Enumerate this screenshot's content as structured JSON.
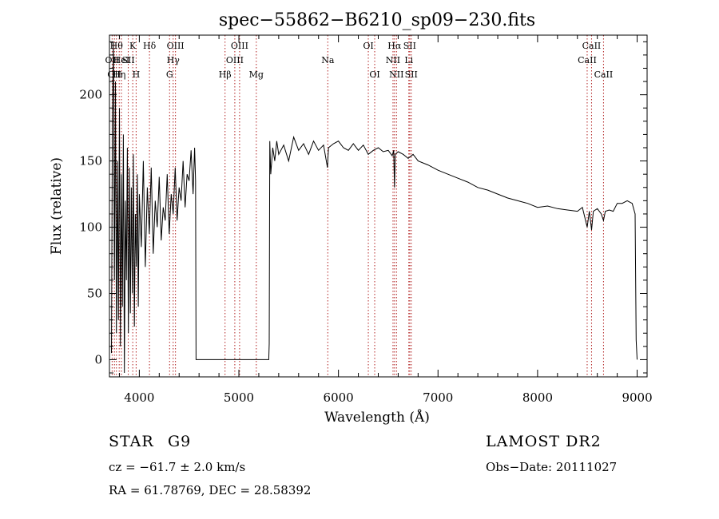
{
  "chart_data": {
    "type": "line",
    "title": "spec−55862−B6210_sp09−230.fits",
    "xlabel": "Wavelength (Å)",
    "ylabel": "Flux (relative)",
    "xlim": [
      3700,
      9100
    ],
    "ylim": [
      -13,
      245
    ],
    "xticks": [
      4000,
      5000,
      6000,
      7000,
      8000,
      9000
    ],
    "yticks": [
      0,
      50,
      100,
      150,
      200
    ],
    "grid": false,
    "line_color": "#000000",
    "marker_color": "#b22222",
    "series": [
      {
        "values_x": [
          3720,
          3730,
          3740,
          3750,
          3760,
          3770,
          3780,
          3790,
          3800,
          3810,
          3820,
          3830,
          3840,
          3850,
          3860,
          3870,
          3880,
          3890,
          3900,
          3910,
          3920,
          3930,
          3940,
          3950,
          3960,
          3970,
          3980,
          3990,
          4000,
          4020,
          4040,
          4060,
          4080,
          4100,
          4120,
          4140,
          4160,
          4180,
          4200,
          4220,
          4240,
          4260,
          4280,
          4300,
          4320,
          4340,
          4360,
          4380,
          4400,
          4420,
          4440,
          4460,
          4480,
          4500,
          4520,
          4540,
          4555,
          4565,
          4570,
          5300,
          5305,
          5310,
          5320,
          5340,
          5360,
          5380,
          5400,
          5450,
          5500,
          5550,
          5600,
          5650,
          5700,
          5750,
          5800,
          5850,
          5890,
          5900,
          5950,
          6000,
          6050,
          6100,
          6150,
          6200,
          6250,
          6300,
          6350,
          6400,
          6450,
          6500,
          6540,
          6555,
          6563,
          6570,
          6600,
          6650,
          6700,
          6750,
          6800,
          6900,
          7000,
          7100,
          7200,
          7300,
          7400,
          7500,
          7600,
          7700,
          7800,
          7900,
          8000,
          8100,
          8200,
          8300,
          8400,
          8450,
          8498,
          8520,
          8542,
          8560,
          8600,
          8640,
          8662,
          8680,
          8720,
          8760,
          8800,
          8850,
          8900,
          8950,
          8980,
          8990,
          9000
        ],
        "values_y": [
          5,
          180,
          240,
          60,
          210,
          20,
          150,
          30,
          190,
          10,
          140,
          40,
          170,
          -10,
          120,
          60,
          160,
          20,
          145,
          35,
          130,
          50,
          155,
          25,
          110,
          70,
          140,
          40,
          125,
          85,
          150,
          70,
          130,
          95,
          145,
          80,
          120,
          100,
          138,
          90,
          115,
          105,
          140,
          95,
          125,
          110,
          145,
          105,
          130,
          120,
          150,
          115,
          140,
          135,
          158,
          125,
          160,
          135,
          0,
          0,
          12,
          165,
          140,
          160,
          150,
          165,
          155,
          162,
          150,
          168,
          158,
          163,
          155,
          165,
          158,
          162,
          145,
          160,
          163,
          165,
          160,
          158,
          163,
          158,
          162,
          155,
          158,
          160,
          157,
          158,
          154,
          158,
          130,
          155,
          157,
          155,
          152,
          155,
          150,
          147,
          143,
          140,
          137,
          134,
          130,
          128,
          125,
          122,
          120,
          118,
          115,
          116,
          114,
          113,
          112,
          115,
          100,
          112,
          98,
          112,
          114,
          110,
          105,
          112,
          113,
          112,
          118,
          118,
          120,
          118,
          110,
          15,
          0
        ]
      }
    ],
    "line_markers": [
      {
        "x": 3727,
        "row": 2,
        "label": "OII"
      },
      {
        "x": 3750,
        "row": 3,
        "label": "OII"
      },
      {
        "x": 3770,
        "row": 1,
        "label": "Hθ"
      },
      {
        "x": 3798,
        "row": 3,
        "label": "Hη"
      },
      {
        "x": 3820,
        "row": 2,
        "label": "HeI"
      },
      {
        "x": 3889,
        "row": 2,
        "label": "SII"
      },
      {
        "x": 3934,
        "row": 1,
        "label": "K"
      },
      {
        "x": 3968,
        "row": 3,
        "label": "H"
      },
      {
        "x": 4102,
        "row": 1,
        "label": "Hδ"
      },
      {
        "x": 4304,
        "row": 3,
        "label": "G"
      },
      {
        "x": 4340,
        "row": 2,
        "label": "Hγ"
      },
      {
        "x": 4363,
        "row": 1,
        "label": "OIII"
      },
      {
        "x": 4861,
        "row": 3,
        "label": "Hβ"
      },
      {
        "x": 4959,
        "row": 2,
        "label": "OIII"
      },
      {
        "x": 5007,
        "row": 1,
        "label": "OIII"
      },
      {
        "x": 5175,
        "row": 3,
        "label": "Mg"
      },
      {
        "x": 5893,
        "row": 2,
        "label": "Na"
      },
      {
        "x": 6300,
        "row": 1,
        "label": "OI"
      },
      {
        "x": 6364,
        "row": 3,
        "label": "OI"
      },
      {
        "x": 6548,
        "row": 2,
        "label": "NII"
      },
      {
        "x": 6563,
        "row": 1,
        "label": "Hα"
      },
      {
        "x": 6583,
        "row": 3,
        "label": "NII"
      },
      {
        "x": 6707,
        "row": 2,
        "label": "Li"
      },
      {
        "x": 6716,
        "row": 1,
        "label": "SII"
      },
      {
        "x": 6731,
        "row": 3,
        "label": "SII"
      },
      {
        "x": 8498,
        "row": 2,
        "label": "CaII"
      },
      {
        "x": 8542,
        "row": 1,
        "label": "CaII"
      },
      {
        "x": 8662,
        "row": 3,
        "label": "CaII"
      }
    ]
  },
  "info": {
    "class_label": "STAR",
    "subclass": "G9",
    "survey": "LAMOST DR2",
    "cz": "cz = −61.7 ± 2.0 km/s",
    "obs_date": "Obs−Date: 20111027",
    "coords": "RA =  61.78769, DEC =  28.58392"
  }
}
